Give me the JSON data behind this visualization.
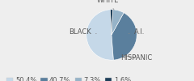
{
  "labels": [
    "WHITE",
    "BLACK",
    "A.I.",
    "HISPANIC"
  ],
  "values": [
    50.4,
    40.7,
    7.3,
    1.6
  ],
  "colors": [
    "#c5d8e8",
    "#5a7f9d",
    "#96b3c8",
    "#1e3f5a"
  ],
  "legend_labels": [
    "50.4%",
    "40.7%",
    "7.3%",
    "1.6%"
  ],
  "startangle": 93,
  "bg_color": "#eeeeee",
  "label_offsets": {
    "WHITE": [
      -0.15,
      1.35
    ],
    "BLACK": [
      -1.25,
      0.1
    ],
    "A.I.": [
      1.1,
      0.1
    ],
    "HISPANIC": [
      1.0,
      -0.9
    ]
  },
  "line_ends": {
    "WHITE": [
      0.15,
      0.92
    ],
    "BLACK": [
      -0.6,
      0.05
    ],
    "A.I.": [
      0.68,
      0.05
    ],
    "HISPANIC": [
      0.35,
      -0.8
    ]
  },
  "label_fontsize": 6.0,
  "legend_fontsize": 6.0
}
